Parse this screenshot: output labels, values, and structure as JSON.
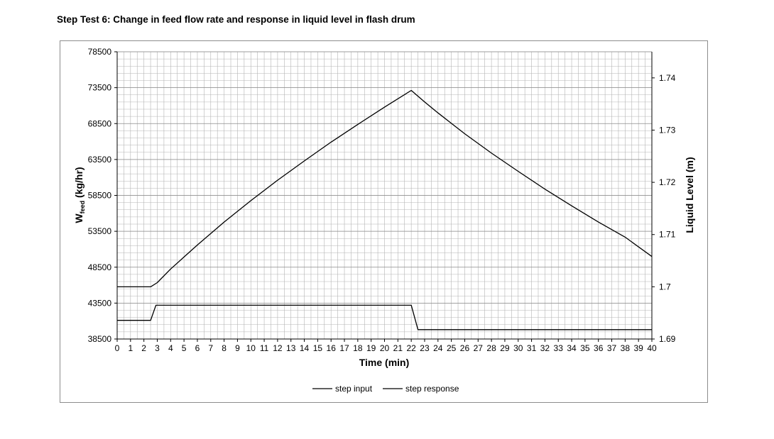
{
  "title": "Step Test 6: Change in feed flow rate and response in liquid level in flash drum",
  "chart_data": {
    "type": "line",
    "xlabel": "Time (min)",
    "ylabel_left": {
      "main": "W",
      "sub": "feed",
      "rest": " (kg/hr)"
    },
    "ylabel_right": "Liquid Level (m)",
    "xlim": [
      0,
      40
    ],
    "ylim_left": [
      38500,
      78500
    ],
    "ylim_right": [
      1.69,
      1.745
    ],
    "x_ticks": [
      0,
      1,
      2,
      3,
      4,
      5,
      6,
      7,
      8,
      9,
      10,
      11,
      12,
      13,
      14,
      15,
      16,
      17,
      18,
      19,
      20,
      21,
      22,
      23,
      24,
      25,
      26,
      27,
      28,
      29,
      30,
      31,
      32,
      33,
      34,
      35,
      36,
      37,
      38,
      39,
      40
    ],
    "y_left_ticks": [
      38500,
      43500,
      48500,
      53500,
      58500,
      63500,
      68500,
      73500,
      78500
    ],
    "y_right_ticks": [
      1.69,
      1.7,
      1.71,
      1.72,
      1.73,
      1.74
    ],
    "y_right_tick_labels": [
      "1.69",
      "1.7",
      "1.71",
      "1.72",
      "1.73",
      "1.74"
    ],
    "grid": true,
    "legend_position": "bottom-center",
    "series": [
      {
        "name": "step input",
        "axis": "left",
        "x": [
          0,
          2.5,
          2.9,
          22,
          22.5,
          40
        ],
        "y": [
          41100,
          41100,
          43200,
          43200,
          39800,
          39800
        ]
      },
      {
        "name": "step response",
        "axis": "right",
        "x": [
          0,
          2.5,
          3,
          4,
          5,
          6,
          8,
          10,
          12,
          14,
          16,
          18,
          20,
          22,
          23,
          24,
          26,
          28,
          30,
          32,
          34,
          36,
          38,
          40
        ],
        "y": [
          1.7,
          1.7,
          1.7008,
          1.7034,
          1.7057,
          1.708,
          1.7124,
          1.7165,
          1.7204,
          1.7241,
          1.7277,
          1.7311,
          1.7344,
          1.7376,
          1.7354,
          1.7333,
          1.7293,
          1.7256,
          1.7221,
          1.7187,
          1.7155,
          1.7124,
          1.7095,
          1.7058
        ]
      }
    ]
  }
}
